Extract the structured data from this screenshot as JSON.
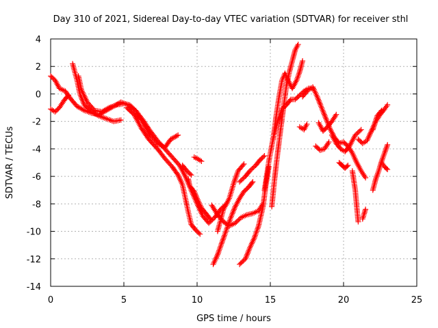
{
  "chart_data": {
    "type": "scatter",
    "title": "Day 310 of 2021, Sidereal Day-to-day VTEC variation (SDTVAR) for receiver sthl",
    "xlabel": "GPS time / hours",
    "ylabel": "SDTVAR / TECUs",
    "xlim": [
      0,
      25
    ],
    "ylim": [
      -14,
      4
    ],
    "xticks": [
      "0",
      "5",
      "10",
      "15",
      "20",
      "25"
    ],
    "yticks": [
      "4",
      "2",
      "0",
      "-2",
      "-4",
      "-6",
      "-8",
      "-10",
      "-12",
      "-14"
    ],
    "grid": true,
    "marker": "+",
    "color": "#ff0000",
    "tracks": [
      [
        [
          0.0,
          1.3
        ],
        [
          0.3,
          1.0
        ],
        [
          0.6,
          0.4
        ],
        [
          1.0,
          0.2
        ],
        [
          1.4,
          -0.4
        ],
        [
          1.8,
          -0.9
        ],
        [
          2.3,
          -1.2
        ],
        [
          2.8,
          -1.4
        ],
        [
          3.3,
          -1.5
        ],
        [
          3.8,
          -1.2
        ],
        [
          4.3,
          -0.9
        ],
        [
          4.8,
          -0.6
        ],
        [
          5.3,
          -0.8
        ],
        [
          5.8,
          -1.2
        ],
        [
          6.3,
          -1.9
        ],
        [
          6.8,
          -2.7
        ],
        [
          7.3,
          -3.4
        ],
        [
          7.8,
          -4.0
        ],
        [
          8.3,
          -4.6
        ],
        [
          8.8,
          -5.2
        ],
        [
          9.2,
          -6.0
        ],
        [
          9.6,
          -7.0
        ],
        [
          10.0,
          -8.0
        ],
        [
          10.4,
          -8.9
        ],
        [
          10.8,
          -9.4
        ],
        [
          11.2,
          -9.0
        ],
        [
          11.6,
          -8.4
        ],
        [
          12.0,
          -8.0
        ]
      ],
      [
        [
          0.0,
          -1.1
        ],
        [
          0.3,
          -1.3
        ],
        [
          0.6,
          -1.0
        ],
        [
          0.9,
          -0.5
        ],
        [
          1.2,
          -0.1
        ]
      ],
      [
        [
          1.5,
          2.2
        ],
        [
          1.8,
          1.0
        ],
        [
          2.0,
          0.0
        ],
        [
          2.3,
          -0.8
        ],
        [
          2.8,
          -1.3
        ],
        [
          3.3,
          -1.6
        ],
        [
          3.8,
          -1.8
        ],
        [
          4.3,
          -2.0
        ],
        [
          4.8,
          -1.9
        ]
      ],
      [
        [
          1.9,
          1.3
        ],
        [
          2.1,
          0.3
        ],
        [
          2.5,
          -0.6
        ],
        [
          3.0,
          -1.2
        ],
        [
          3.5,
          -1.3
        ],
        [
          4.0,
          -1.0
        ],
        [
          4.5,
          -0.8
        ],
        [
          5.0,
          -0.7
        ],
        [
          5.4,
          -0.8
        ],
        [
          5.8,
          -1.2
        ],
        [
          6.3,
          -2.1
        ],
        [
          6.8,
          -3.0
        ],
        [
          7.3,
          -3.6
        ],
        [
          7.8,
          -3.9
        ],
        [
          8.2,
          -3.3
        ],
        [
          8.7,
          -3.0
        ]
      ],
      [
        [
          5.2,
          -1.0
        ],
        [
          5.7,
          -1.5
        ],
        [
          6.2,
          -2.5
        ],
        [
          6.7,
          -3.3
        ],
        [
          7.3,
          -4.0
        ],
        [
          7.8,
          -4.7
        ],
        [
          8.3,
          -5.3
        ],
        [
          8.7,
          -5.9
        ],
        [
          9.0,
          -6.6
        ],
        [
          9.2,
          -7.6
        ],
        [
          9.4,
          -8.6
        ],
        [
          9.6,
          -9.5
        ],
        [
          9.9,
          -9.9
        ],
        [
          10.2,
          -10.2
        ]
      ],
      [
        [
          9.4,
          -6.2
        ],
        [
          9.5,
          -6.7
        ],
        [
          9.8,
          -7.1
        ],
        [
          10.0,
          -7.6
        ],
        [
          10.3,
          -8.3
        ],
        [
          10.6,
          -8.7
        ],
        [
          10.9,
          -9.1
        ]
      ],
      [
        [
          9.8,
          -4.6
        ],
        [
          10.0,
          -4.7
        ],
        [
          10.3,
          -4.9
        ]
      ],
      [
        [
          9.0,
          -5.2
        ],
        [
          9.3,
          -5.6
        ],
        [
          9.6,
          -5.9
        ]
      ],
      [
        [
          11.1,
          -12.4
        ],
        [
          11.4,
          -11.7
        ],
        [
          11.7,
          -10.8
        ],
        [
          12.0,
          -9.9
        ],
        [
          12.3,
          -9.0
        ],
        [
          12.6,
          -8.2
        ],
        [
          12.9,
          -7.6
        ],
        [
          13.2,
          -7.1
        ],
        [
          13.5,
          -6.8
        ],
        [
          13.8,
          -6.4
        ]
      ],
      [
        [
          11.0,
          -8.1
        ],
        [
          11.4,
          -8.8
        ],
        [
          11.8,
          -9.3
        ],
        [
          12.2,
          -9.6
        ],
        [
          12.6,
          -9.4
        ],
        [
          13.0,
          -9.0
        ],
        [
          13.4,
          -8.8
        ],
        [
          13.8,
          -8.7
        ],
        [
          14.2,
          -8.5
        ],
        [
          14.5,
          -8.0
        ]
      ],
      [
        [
          11.4,
          -10.0
        ],
        [
          11.8,
          -8.4
        ],
        [
          12.2,
          -7.6
        ],
        [
          12.5,
          -6.5
        ],
        [
          12.8,
          -5.6
        ],
        [
          13.2,
          -5.1
        ]
      ],
      [
        [
          12.9,
          -6.4
        ],
        [
          13.3,
          -6.0
        ],
        [
          13.6,
          -5.6
        ],
        [
          14.0,
          -5.2
        ],
        [
          14.3,
          -4.8
        ],
        [
          14.6,
          -4.5
        ]
      ],
      [
        [
          12.9,
          -12.4
        ],
        [
          13.3,
          -12.0
        ],
        [
          13.6,
          -11.2
        ],
        [
          13.9,
          -10.5
        ],
        [
          14.2,
          -9.6
        ],
        [
          14.5,
          -8.2
        ],
        [
          14.7,
          -6.6
        ],
        [
          14.9,
          -5.3
        ]
      ],
      [
        [
          14.6,
          -7.0
        ],
        [
          14.9,
          -4.9
        ],
        [
          15.2,
          -3.2
        ],
        [
          15.5,
          -2.0
        ],
        [
          15.8,
          -1.1
        ],
        [
          16.1,
          -0.8
        ],
        [
          16.4,
          -0.4
        ],
        [
          16.7,
          -0.4
        ],
        [
          17.0,
          -0.1
        ],
        [
          17.3,
          0.2
        ],
        [
          17.6,
          0.4
        ],
        [
          17.9,
          0.4
        ]
      ],
      [
        [
          15.1,
          -8.2
        ],
        [
          15.3,
          -6.1
        ],
        [
          15.5,
          -4.3
        ],
        [
          15.7,
          -2.6
        ],
        [
          15.9,
          -1.0
        ],
        [
          16.1,
          0.6
        ],
        [
          16.3,
          1.6
        ],
        [
          16.5,
          2.4
        ],
        [
          16.7,
          3.2
        ],
        [
          16.9,
          3.6
        ]
      ],
      [
        [
          15.2,
          -3.3
        ],
        [
          15.4,
          -1.6
        ],
        [
          15.6,
          -0.2
        ],
        [
          15.8,
          1.0
        ],
        [
          16.0,
          1.5
        ],
        [
          16.2,
          1.0
        ],
        [
          16.5,
          0.4
        ],
        [
          16.8,
          1.0
        ],
        [
          17.0,
          1.6
        ],
        [
          17.2,
          2.4
        ]
      ],
      [
        [
          17.0,
          -2.4
        ],
        [
          17.3,
          -2.6
        ],
        [
          17.5,
          -2.2
        ]
      ],
      [
        [
          17.2,
          -0.2
        ],
        [
          17.6,
          0.3
        ],
        [
          17.9,
          0.5
        ],
        [
          18.2,
          -0.2
        ],
        [
          18.5,
          -1.0
        ],
        [
          18.8,
          -1.8
        ],
        [
          19.1,
          -2.6
        ],
        [
          19.4,
          -3.2
        ],
        [
          19.7,
          -3.6
        ],
        [
          20.0,
          -3.5
        ],
        [
          20.3,
          -3.8
        ],
        [
          20.6,
          -4.3
        ],
        [
          20.9,
          -5.0
        ],
        [
          21.2,
          -5.6
        ],
        [
          21.5,
          -6.1
        ]
      ],
      [
        [
          18.1,
          -3.8
        ],
        [
          18.4,
          -4.1
        ],
        [
          18.7,
          -4.0
        ],
        [
          19.0,
          -3.5
        ]
      ],
      [
        [
          18.3,
          -2.1
        ],
        [
          18.6,
          -2.7
        ],
        [
          18.9,
          -2.4
        ],
        [
          19.2,
          -2.0
        ],
        [
          19.5,
          -1.5
        ]
      ],
      [
        [
          19.2,
          -3.0
        ],
        [
          19.5,
          -3.6
        ],
        [
          19.8,
          -4.0
        ],
        [
          20.1,
          -4.2
        ],
        [
          20.4,
          -3.8
        ],
        [
          20.8,
          -3.0
        ],
        [
          21.2,
          -2.6
        ]
      ],
      [
        [
          19.7,
          -5.0
        ],
        [
          19.9,
          -5.2
        ],
        [
          20.1,
          -5.4
        ],
        [
          20.3,
          -5.2
        ]
      ],
      [
        [
          20.6,
          -5.6
        ],
        [
          20.8,
          -7.0
        ],
        [
          20.9,
          -8.2
        ],
        [
          21.0,
          -9.3
        ]
      ],
      [
        [
          21.3,
          -9.1
        ],
        [
          21.5,
          -8.4
        ]
      ],
      [
        [
          21.0,
          -3.3
        ],
        [
          21.3,
          -3.6
        ],
        [
          21.6,
          -3.4
        ],
        [
          21.9,
          -2.7
        ],
        [
          22.2,
          -2.0
        ],
        [
          22.5,
          -1.5
        ],
        [
          22.8,
          -1.1
        ],
        [
          23.0,
          -0.8
        ]
      ],
      [
        [
          22.0,
          -7.0
        ],
        [
          22.2,
          -6.2
        ],
        [
          22.4,
          -5.6
        ],
        [
          22.6,
          -4.9
        ],
        [
          22.8,
          -4.3
        ],
        [
          23.0,
          -3.7
        ]
      ],
      [
        [
          22.6,
          -5.0
        ],
        [
          22.8,
          -5.3
        ],
        [
          23.0,
          -5.5
        ]
      ],
      [
        [
          22.0,
          -2.6
        ],
        [
          22.3,
          -1.6
        ],
        [
          22.6,
          -1.2
        ]
      ]
    ]
  }
}
